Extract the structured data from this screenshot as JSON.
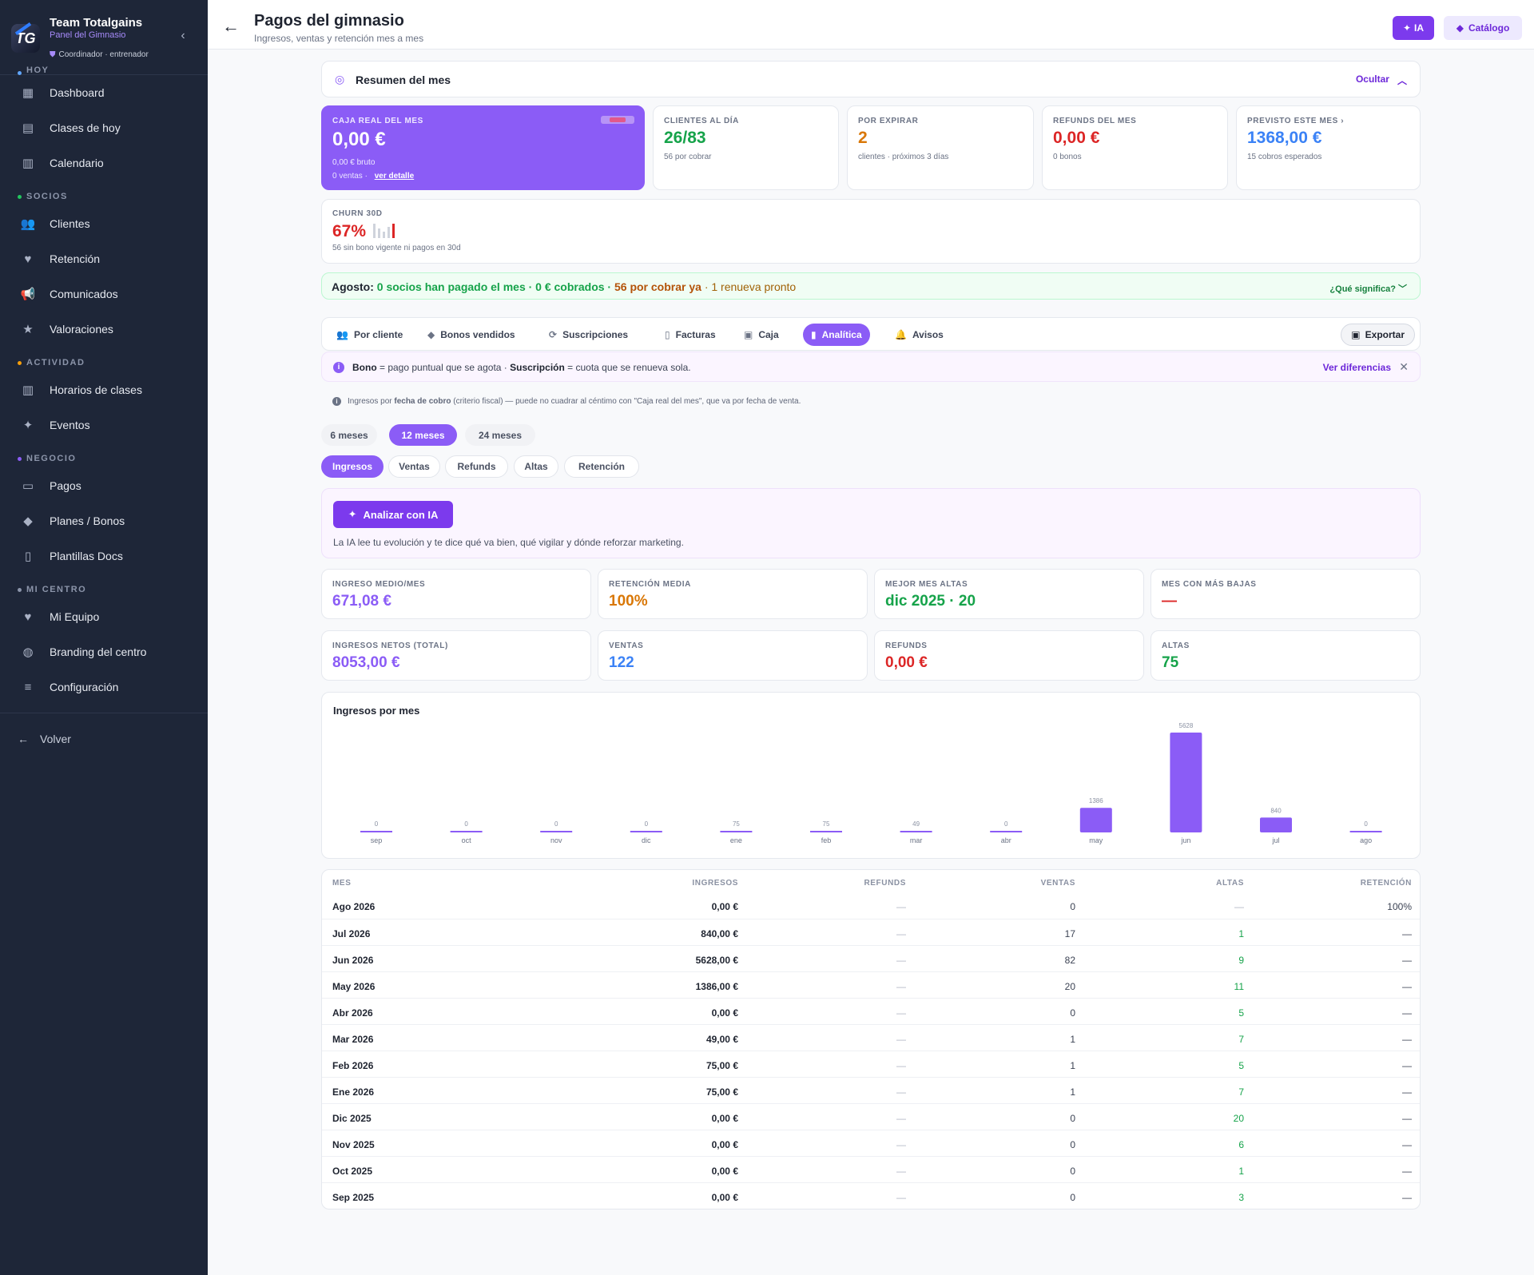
{
  "sidebar": {
    "brand_name": "Team Totalgains",
    "brand_sub": "Panel del Gimnasio",
    "brand_role": "Coordinador · entrenador",
    "logo_text": "TG",
    "sections": [
      {
        "label": "HOY",
        "color": "#60a5fa",
        "items": [
          {
            "label": "Dashboard",
            "icon": "grid-icon"
          },
          {
            "label": "Clases de hoy",
            "icon": "class-icon"
          },
          {
            "label": "Calendario",
            "icon": "calendar-icon"
          }
        ]
      },
      {
        "label": "SOCIOS",
        "color": "#22c55e",
        "items": [
          {
            "label": "Clientes",
            "icon": "users-icon"
          },
          {
            "label": "Retención",
            "icon": "heart-icon"
          },
          {
            "label": "Comunicados",
            "icon": "megaphone-icon"
          },
          {
            "label": "Valoraciones",
            "icon": "star-icon"
          }
        ]
      },
      {
        "label": "ACTIVIDAD",
        "color": "#f59e0b",
        "items": [
          {
            "label": "Horarios de clases",
            "icon": "schedule-icon"
          },
          {
            "label": "Eventos",
            "icon": "sparkles-icon"
          }
        ]
      },
      {
        "label": "NEGOCIO",
        "color": "#8b5cf6",
        "items": [
          {
            "label": "Pagos",
            "icon": "wallet-icon"
          },
          {
            "label": "Planes / Bonos",
            "icon": "tag-icon"
          },
          {
            "label": "Plantillas Docs",
            "icon": "document-icon"
          }
        ]
      },
      {
        "label": "MI CENTRO",
        "color": "#8c95aa",
        "items": [
          {
            "label": "Mi Equipo",
            "icon": "team-icon"
          },
          {
            "label": "Branding del centro",
            "icon": "palette-icon"
          },
          {
            "label": "Configuración",
            "icon": "sliders-icon"
          }
        ]
      }
    ],
    "back_label": "Volver"
  },
  "header": {
    "title": "Pagos del gimnasio",
    "subtitle": "Ingresos, ventas y retención mes a mes",
    "ia_label": "IA",
    "catalog_label": "Catálogo"
  },
  "summary": {
    "title": "Resumen del mes",
    "hide_label": "Ocultar",
    "kpis": {
      "caja": {
        "label": "CAJA REAL DEL MES",
        "value": "0,00 €",
        "sub": "0,00 € bruto",
        "sub2": "0 ventas ·",
        "link": "ver detalle"
      },
      "clientes": {
        "label": "CLIENTES AL DÍA",
        "value": "26/83",
        "sub": "56 por cobrar",
        "color": "#16a34a"
      },
      "expirar": {
        "label": "POR EXPIRAR",
        "value": "2",
        "sub": "clientes · próximos 3 días",
        "color": "#d97706"
      },
      "refunds": {
        "label": "REFUNDS DEL MES",
        "value": "0,00 €",
        "sub": "0 bonos",
        "color": "#dc2626"
      },
      "previsto": {
        "label": "PREVISTO ESTE MES ›",
        "value": "1368,00 €",
        "sub": "15 cobros esperados",
        "color": "#3b82f6"
      }
    },
    "churn": {
      "label": "CHURN 30D",
      "value": "67%",
      "sub": "56 sin bono vigente ni pagos en 30d"
    }
  },
  "banner": {
    "month": "Agosto:",
    "paid": "0 socios han pagado el mes · 0 € cobrados ·",
    "pending": "56 por cobrar ya",
    "renew": "· 1 renueva pronto",
    "help": "¿Qué significa?"
  },
  "tabs": [
    {
      "label": "Por cliente",
      "icon": "users-icon"
    },
    {
      "label": "Bonos vendidos",
      "icon": "tag-icon"
    },
    {
      "label": "Suscripciones",
      "icon": "refresh-icon"
    },
    {
      "label": "Facturas",
      "icon": "document-icon"
    },
    {
      "label": "Caja",
      "icon": "cashbox-icon"
    },
    {
      "label": "Analítica",
      "icon": "chart-icon",
      "active": true
    },
    {
      "label": "Avisos",
      "icon": "bell-icon"
    }
  ],
  "export_label": "Exportar",
  "info": {
    "bono": "Bono",
    "bono_desc": " = pago puntual que se agota · ",
    "susc": "Suscripción",
    "susc_desc": " = cuota que se renueva sola.",
    "link": "Ver diferencias"
  },
  "fiscal": {
    "pre": "Ingresos por ",
    "bold": "fecha de cobro",
    "post": " (criterio fiscal) — puede no cuadrar al céntimo con \"Caja real del mes\", que va por fecha de venta."
  },
  "ranges": [
    {
      "label": "6 meses"
    },
    {
      "label": "12 meses",
      "active": true
    },
    {
      "label": "24 meses"
    }
  ],
  "metrics": [
    {
      "label": "Ingresos",
      "active": true
    },
    {
      "label": "Ventas"
    },
    {
      "label": "Refunds"
    },
    {
      "label": "Altas"
    },
    {
      "label": "Retención"
    }
  ],
  "ai": {
    "button": "Analizar con IA",
    "text": "La IA lee tu evolución y te dice qué va bien, qué vigilar y dónde reforzar marketing."
  },
  "stats": [
    {
      "label": "INGRESO MEDIO/MES",
      "value": "671,08 €",
      "color": "#8b5cf6"
    },
    {
      "label": "RETENCIÓN MEDIA",
      "value": "100%",
      "color": "#d97706"
    },
    {
      "label": "MEJOR MES ALTAS",
      "value": "dic 2025 · 20",
      "color": "#16a34a"
    },
    {
      "label": "MES CON MÁS BAJAS",
      "value": "—",
      "color": "#dc2626"
    },
    {
      "label": "INGRESOS NETOS (TOTAL)",
      "value": "8053,00 €",
      "color": "#8b5cf6"
    },
    {
      "label": "VENTAS",
      "value": "122",
      "color": "#3b82f6"
    },
    {
      "label": "REFUNDS",
      "value": "0,00 €",
      "color": "#dc2626"
    },
    {
      "label": "ALTAS",
      "value": "75",
      "color": "#16a34a"
    }
  ],
  "chart_data": {
    "type": "bar",
    "title": "Ingresos por mes",
    "categories": [
      "sep",
      "oct",
      "nov",
      "dic",
      "ene",
      "feb",
      "mar",
      "abr",
      "may",
      "jun",
      "jul",
      "ago"
    ],
    "values": [
      0,
      0,
      0,
      0,
      75,
      75,
      49,
      0,
      1386,
      5628,
      840,
      0
    ],
    "color": "#8b5cf6",
    "ylim": [
      0,
      5628
    ]
  },
  "table": {
    "headers": [
      "MES",
      "INGRESOS",
      "REFUNDS",
      "VENTAS",
      "ALTAS",
      "RETENCIÓN"
    ],
    "rows": [
      {
        "mes": "Ago 2026",
        "ingresos": "0,00 €",
        "refunds": "—",
        "ventas": "0",
        "altas": "—",
        "retencion": "100%"
      },
      {
        "mes": "Jul 2026",
        "ingresos": "840,00 €",
        "refunds": "—",
        "ventas": "17",
        "altas": "1",
        "retencion": "—"
      },
      {
        "mes": "Jun 2026",
        "ingresos": "5628,00 €",
        "refunds": "—",
        "ventas": "82",
        "altas": "9",
        "retencion": "—"
      },
      {
        "mes": "May 2026",
        "ingresos": "1386,00 €",
        "refunds": "—",
        "ventas": "20",
        "altas": "11",
        "retencion": "—"
      },
      {
        "mes": "Abr 2026",
        "ingresos": "0,00 €",
        "refunds": "—",
        "ventas": "0",
        "altas": "5",
        "retencion": "—"
      },
      {
        "mes": "Mar 2026",
        "ingresos": "49,00 €",
        "refunds": "—",
        "ventas": "1",
        "altas": "7",
        "retencion": "—"
      },
      {
        "mes": "Feb 2026",
        "ingresos": "75,00 €",
        "refunds": "—",
        "ventas": "1",
        "altas": "5",
        "retencion": "—"
      },
      {
        "mes": "Ene 2026",
        "ingresos": "75,00 €",
        "refunds": "—",
        "ventas": "1",
        "altas": "7",
        "retencion": "—"
      },
      {
        "mes": "Dic 2025",
        "ingresos": "0,00 €",
        "refunds": "—",
        "ventas": "0",
        "altas": "20",
        "retencion": "—"
      },
      {
        "mes": "Nov 2025",
        "ingresos": "0,00 €",
        "refunds": "—",
        "ventas": "0",
        "altas": "6",
        "retencion": "—"
      },
      {
        "mes": "Oct 2025",
        "ingresos": "0,00 €",
        "refunds": "—",
        "ventas": "0",
        "altas": "1",
        "retencion": "—"
      },
      {
        "mes": "Sep 2025",
        "ingresos": "0,00 €",
        "refunds": "—",
        "ventas": "0",
        "altas": "3",
        "retencion": "—"
      }
    ]
  }
}
